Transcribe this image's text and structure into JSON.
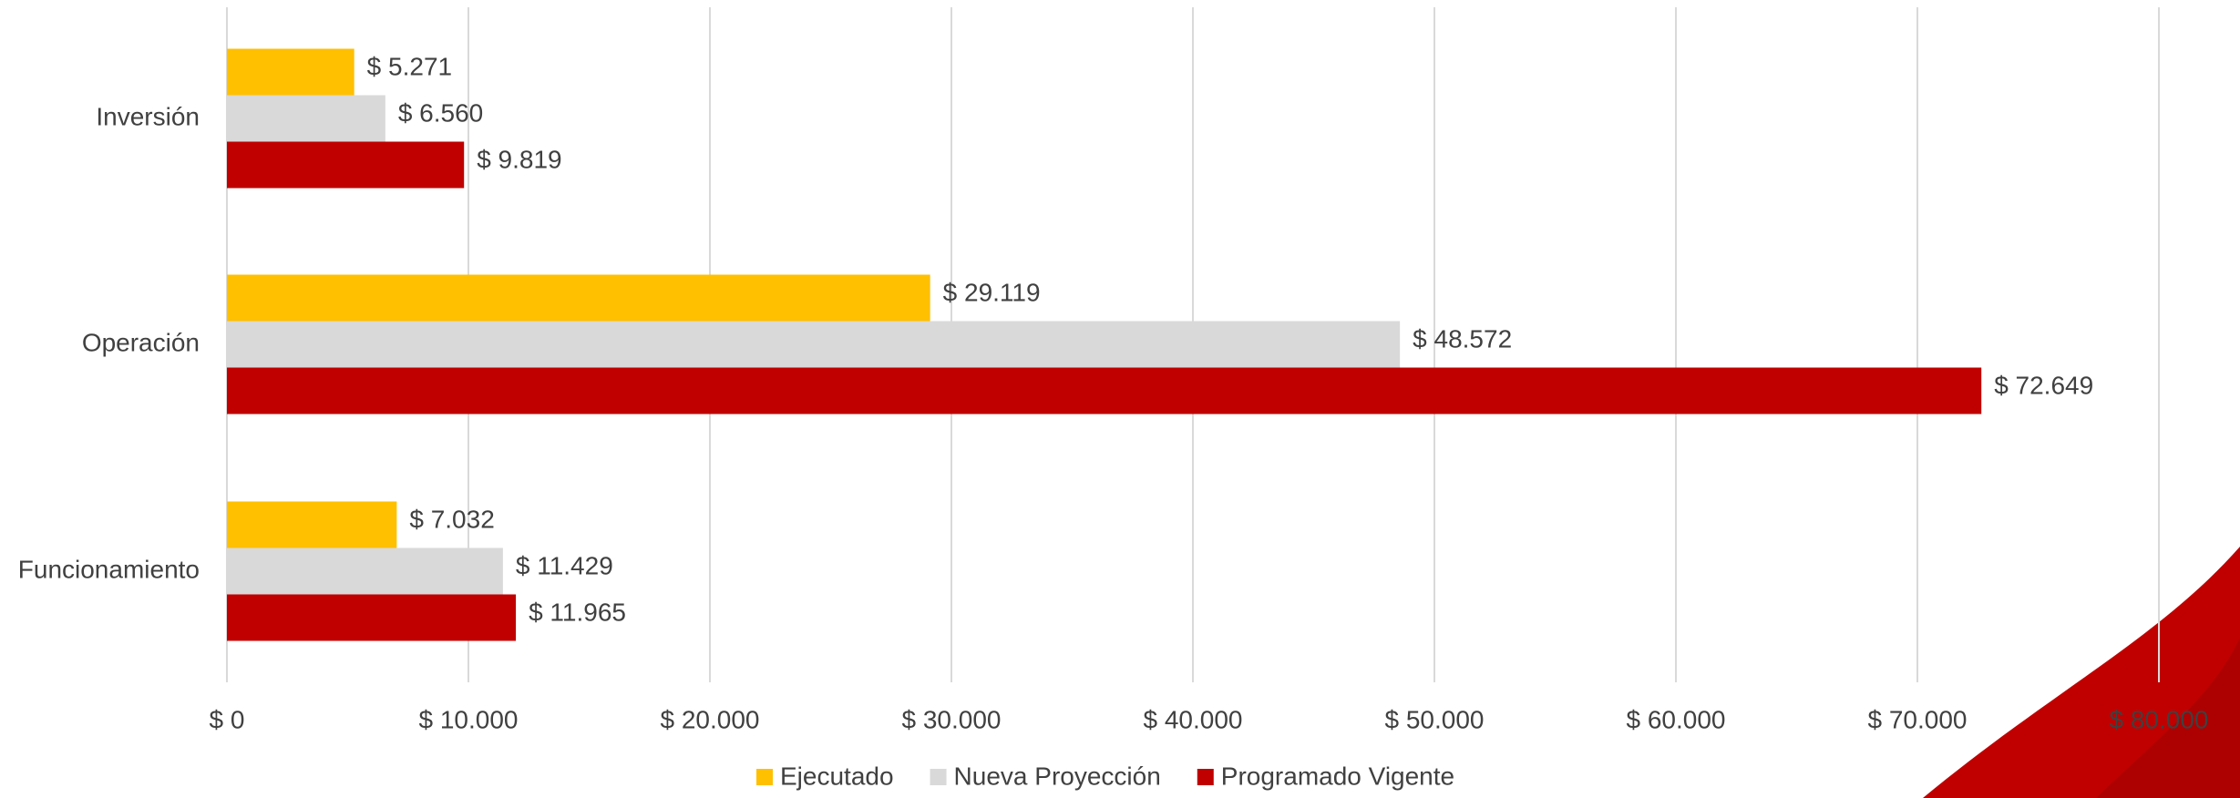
{
  "chart_data": {
    "type": "hbar",
    "categories": [
      "Inversión",
      "Operación",
      "Funcionamiento"
    ],
    "series": [
      {
        "name": "Ejecutado",
        "color": "#ffc000",
        "values": [
          5271,
          29119,
          7032
        ],
        "value_labels": [
          "$ 5.271",
          "$ 29.119",
          "$ 7.032"
        ]
      },
      {
        "name": "Nueva Proyección",
        "color": "#d9d9d9",
        "values": [
          6560,
          48572,
          11429
        ],
        "value_labels": [
          "$ 6.560",
          "$ 48.572",
          "$ 11.429"
        ]
      },
      {
        "name": "Programado Vigente",
        "color": "#c00000",
        "values": [
          9819,
          72649,
          11965
        ],
        "value_labels": [
          "$ 9.819",
          "$ 72.649",
          "$ 11.965"
        ]
      }
    ],
    "xlim": [
      0,
      80000
    ],
    "xticks": [
      {
        "value": 0,
        "label": "$ 0"
      },
      {
        "value": 10000,
        "label": "$ 10.000"
      },
      {
        "value": 20000,
        "label": "$ 20.000"
      },
      {
        "value": 30000,
        "label": "$ 30.000"
      },
      {
        "value": 40000,
        "label": "$ 40.000"
      },
      {
        "value": 50000,
        "label": "$ 50.000"
      },
      {
        "value": 60000,
        "label": "$ 60.000"
      },
      {
        "value": 70000,
        "label": "$ 70.000"
      },
      {
        "value": 80000,
        "label": "$ 80.000"
      }
    ],
    "grid": true,
    "legend": "bottom"
  }
}
